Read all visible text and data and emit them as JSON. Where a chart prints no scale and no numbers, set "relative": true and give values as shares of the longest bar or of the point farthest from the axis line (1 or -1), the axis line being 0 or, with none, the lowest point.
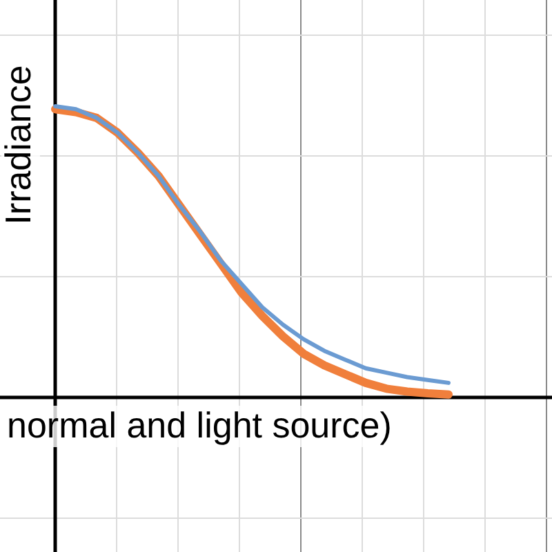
{
  "chart_data": {
    "type": "line",
    "relative": true,
    "xlabel": "normal and light source)",
    "ylabel": "Irradiance",
    "grid": true,
    "legend": false,
    "marker": "none",
    "line_style": "solid",
    "categories": [
      null,
      null,
      null,
      null,
      null,
      null,
      null,
      null,
      null,
      null,
      null,
      null,
      null,
      null,
      null,
      null,
      null,
      null,
      null,
      null,
      null,
      null,
      null,
      null,
      null
    ],
    "series": [
      {
        "color": "#6b9bd2",
        "values": [
          1,
          0.99,
          0.96,
          0.91,
          0.84,
          0.76,
          0.66,
          0.57,
          0.47,
          0.39,
          0.31,
          0.25,
          0.2,
          0.16,
          0.13,
          0.1,
          0.085,
          0.07,
          0.06,
          0.05,
          null,
          null,
          null,
          null,
          null
        ]
      },
      {
        "color": "#f07f3c",
        "values": [
          0.99,
          0.98,
          0.96,
          0.91,
          0.84,
          0.76,
          0.66,
          0.56,
          0.46,
          0.36,
          0.28,
          0.21,
          0.15,
          0.11,
          0.08,
          0.05,
          0.03,
          0.02,
          0.014,
          0.01,
          null,
          null,
          null,
          null,
          null
        ]
      }
    ]
  }
}
